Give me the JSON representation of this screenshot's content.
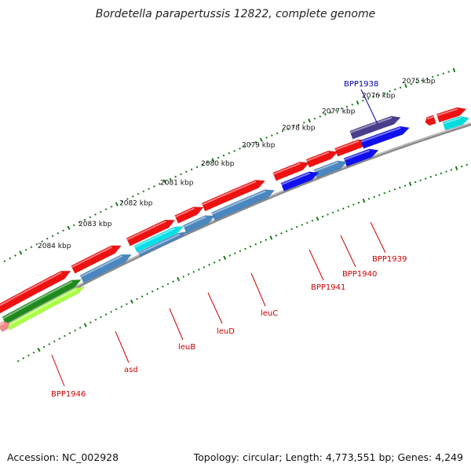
{
  "title": "Bordetella parapertussis 12822, complete genome",
  "footer": {
    "accession": "Accession: NC_002928",
    "summary": "Topology: circular; Length: 4,773,551 bp; Genes: 4,249"
  },
  "colors": {
    "backbone": "#8a8a8a",
    "tick": "#1a7a1a",
    "label_red": "#cc0000",
    "label_blue": "#0000aa"
  },
  "ticks": [
    {
      "label": "2075 kbp"
    },
    {
      "label": "2076 kbp"
    },
    {
      "label": "2077 kbp"
    },
    {
      "label": "2078 kbp"
    },
    {
      "label": "2079 kbp"
    },
    {
      "label": "2080 kbp"
    },
    {
      "label": "2081 kbp"
    },
    {
      "label": "2082 kbp"
    },
    {
      "label": "2083 kbp"
    },
    {
      "label": "2084 kbp"
    }
  ],
  "gene_labels": [
    {
      "name": "BPP1938",
      "color": "#0000aa"
    },
    {
      "name": "BPP1939",
      "color": "#cc0000"
    },
    {
      "name": "BPP1940",
      "color": "#cc0000"
    },
    {
      "name": "BPP1941",
      "color": "#cc0000"
    },
    {
      "name": "leuC",
      "color": "#cc0000"
    },
    {
      "name": "leuD",
      "color": "#cc0000"
    },
    {
      "name": "leuB",
      "color": "#cc0000"
    },
    {
      "name": "asd",
      "color": "#cc0000"
    },
    {
      "name": "BPP1946",
      "color": "#cc0000"
    }
  ]
}
